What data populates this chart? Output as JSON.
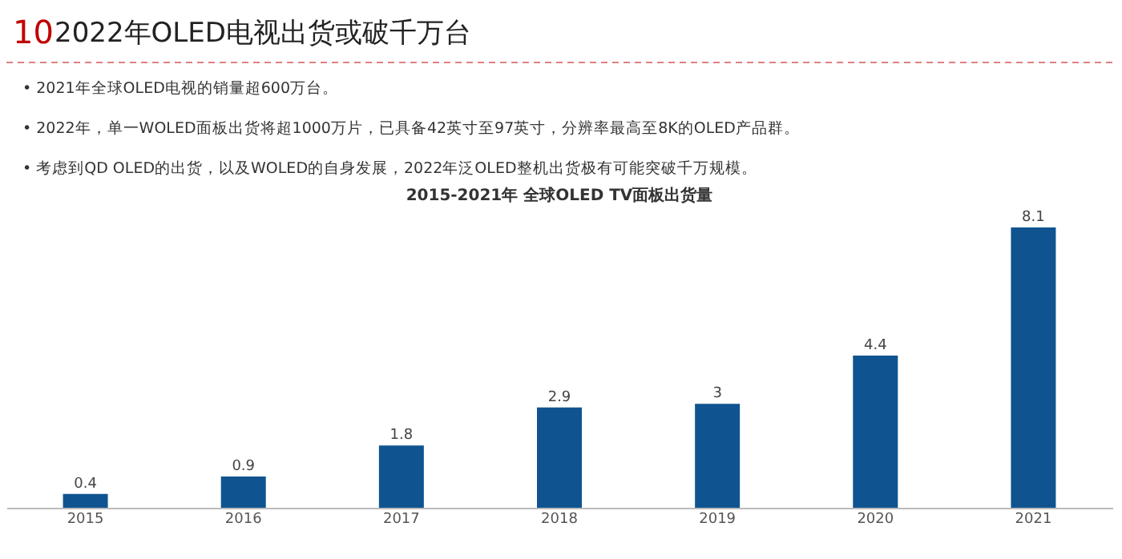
{
  "chart_data": {
    "type": "bar",
    "title": "2015-2021年 全球OLED TV面板出货量",
    "annotations": [
      "10",
      "2022年OLED电视出货或破千万台",
      "•  2021年全球OLED电视的销量超600万台。",
      "•  2022年，单一WOLED面板出货将超1000万片，已具备42英寸至97英寸，分辨率最高至8K的OLED产品群。",
      "•  考虑到QD OLED的出货，以及WOLED的自身发展，2022年泛OLED整机出货极有可能突破千万规模。"
    ],
    "categories": [
      "2015",
      "2016",
      "2017",
      "2018",
      "2019",
      "2020",
      "2021"
    ],
    "values": [
      0.4,
      0.9,
      1.8,
      2.9,
      3,
      4.4,
      8.1
    ],
    "color": "#0f5490",
    "data_labels": true,
    "grid": false,
    "legend": false
  }
}
